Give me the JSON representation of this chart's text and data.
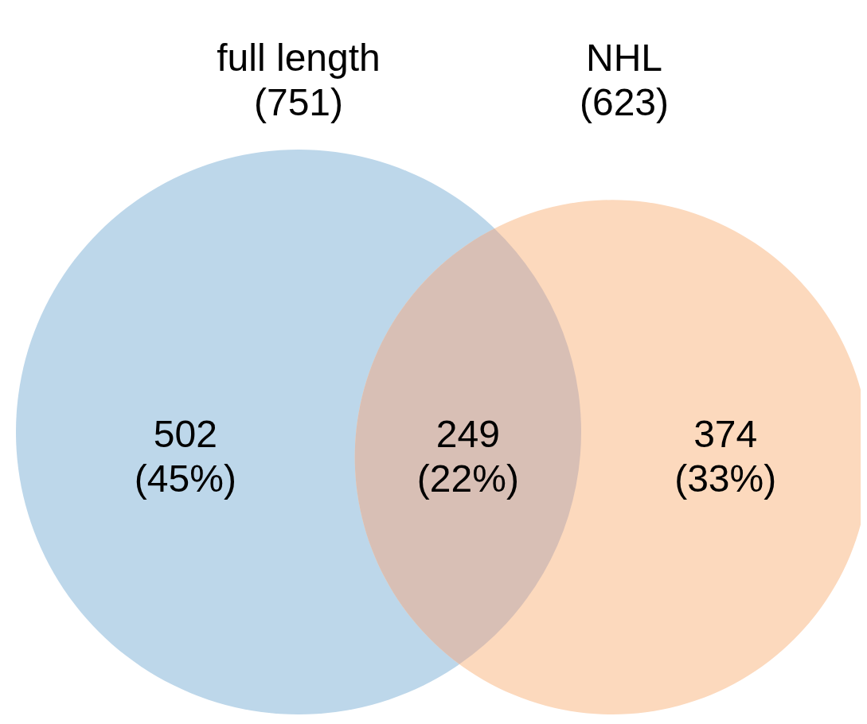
{
  "chart_data": {
    "type": "other",
    "categories": [
      null,
      null,
      null
    ],
    "values": [
      502,
      249,
      374
    ],
    "value_labels": [
      "502\n(45%)",
      "249\n(22%)",
      "374\n(33%)"
    ],
    "colors": [
      "#bdd7ea",
      "#d8bfb5",
      "#fcd9bd"
    ],
    "annotations": [
      "full length",
      "NHL"
    ],
    "totals": [
      "(751)",
      "(623)"
    ]
  }
}
